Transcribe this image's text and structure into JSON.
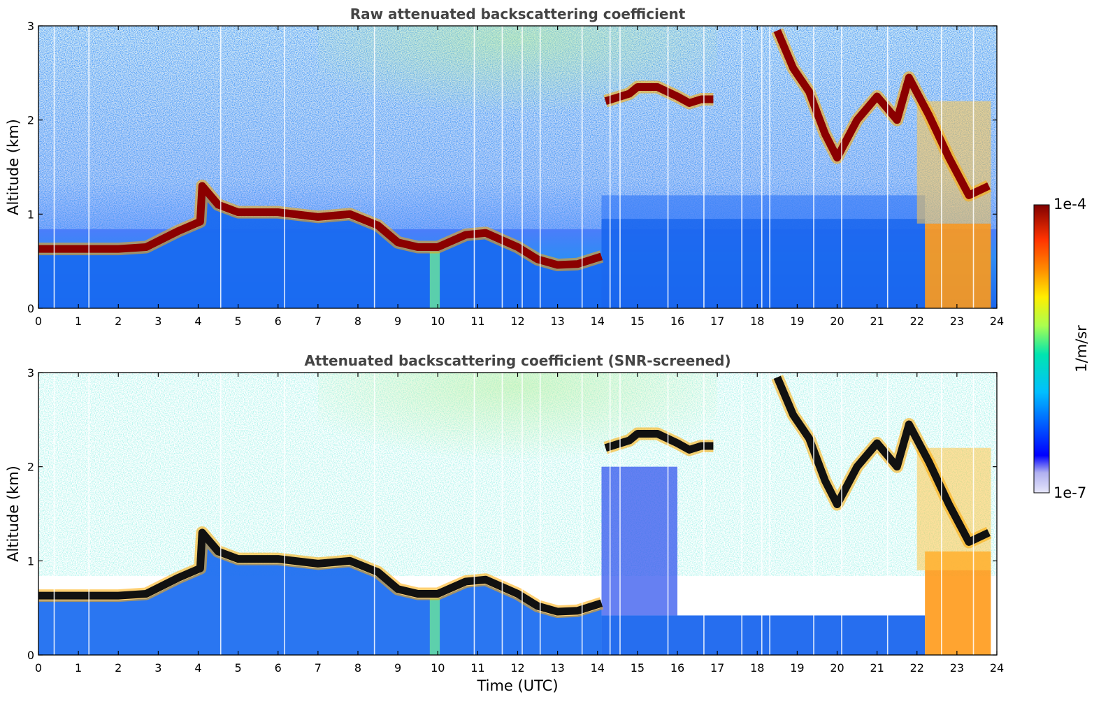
{
  "chart_data": [
    {
      "type": "heatmap",
      "title": "Raw attenuated backscattering coefficient",
      "xlabel": "",
      "ylabel": "Altitude (km)",
      "xlim": [
        0,
        24
      ],
      "ylim": [
        0,
        3
      ],
      "xticks": [
        "0",
        "1",
        "2",
        "3",
        "4",
        "5",
        "6",
        "7",
        "8",
        "9",
        "10",
        "11",
        "12",
        "13",
        "14",
        "15",
        "16",
        "17",
        "18",
        "19",
        "20",
        "21",
        "22",
        "23",
        "24"
      ],
      "yticks": [
        "0",
        "1",
        "2",
        "3"
      ],
      "screened": false,
      "cloud_layer": {
        "x": [
          0,
          1,
          2,
          2.7,
          3.5,
          4.05,
          4.1,
          4.5,
          5,
          6,
          7,
          7.8,
          8.5,
          9,
          9.5,
          10,
          10.7,
          11.2,
          12,
          12.5,
          13,
          13.5,
          14.1
        ],
        "y": [
          0.63,
          0.63,
          0.63,
          0.65,
          0.82,
          0.92,
          1.3,
          1.1,
          1.02,
          1.02,
          0.97,
          1.0,
          0.88,
          0.7,
          0.65,
          0.65,
          0.78,
          0.8,
          0.65,
          0.52,
          0.46,
          0.47,
          0.55
        ]
      },
      "upper_cloud": {
        "x": [
          14.2,
          14.8,
          15,
          15.5,
          16,
          16.3,
          16.6,
          16.9
        ],
        "y": [
          2.2,
          2.28,
          2.35,
          2.35,
          2.25,
          2.18,
          2.22,
          2.22
        ]
      },
      "high_cloud": {
        "x": [
          18.5,
          18.9,
          19.3,
          19.7,
          20,
          20.5,
          21,
          21.5,
          21.8,
          22.3,
          22.8,
          23.3,
          23.8
        ],
        "y": [
          2.95,
          2.55,
          2.3,
          1.85,
          1.6,
          2.0,
          2.25,
          2.0,
          2.45,
          2.05,
          1.6,
          1.2,
          1.3
        ]
      }
    },
    {
      "type": "heatmap",
      "title": "Attenuated backscattering coefficient (SNR-screened)",
      "xlabel": "Time (UTC)",
      "ylabel": "Altitude (km)",
      "xlim": [
        0,
        24
      ],
      "ylim": [
        0,
        3
      ],
      "xticks": [
        "0",
        "1",
        "2",
        "3",
        "4",
        "5",
        "6",
        "7",
        "8",
        "9",
        "10",
        "11",
        "12",
        "13",
        "14",
        "15",
        "16",
        "17",
        "18",
        "19",
        "20",
        "21",
        "22",
        "23",
        "24"
      ],
      "yticks": [
        "0",
        "1",
        "2",
        "3"
      ],
      "screened": true,
      "cloud_layer": {
        "x": [
          0,
          1,
          2,
          2.7,
          3.5,
          4.05,
          4.1,
          4.5,
          5,
          6,
          7,
          7.8,
          8.5,
          9,
          9.5,
          10,
          10.7,
          11.2,
          12,
          12.5,
          13,
          13.5,
          14.1
        ],
        "y": [
          0.63,
          0.63,
          0.63,
          0.65,
          0.82,
          0.92,
          1.3,
          1.1,
          1.02,
          1.02,
          0.97,
          1.0,
          0.88,
          0.7,
          0.65,
          0.65,
          0.78,
          0.8,
          0.65,
          0.52,
          0.46,
          0.47,
          0.55
        ]
      },
      "upper_cloud": {
        "x": [
          14.2,
          14.8,
          15,
          15.5,
          16,
          16.3,
          16.6,
          16.9
        ],
        "y": [
          2.2,
          2.28,
          2.35,
          2.35,
          2.25,
          2.18,
          2.22,
          2.22
        ]
      },
      "high_cloud": {
        "x": [
          18.5,
          18.9,
          19.3,
          19.7,
          20,
          20.5,
          21,
          21.5,
          21.8,
          22.3,
          22.8,
          23.3,
          23.8
        ],
        "y": [
          2.95,
          2.55,
          2.3,
          1.85,
          1.6,
          2.0,
          2.25,
          2.0,
          2.45,
          2.05,
          1.6,
          1.2,
          1.3
        ]
      }
    }
  ],
  "colorbar": {
    "label": "1/m/sr",
    "max_label": "1e-4",
    "min_label": "1e-7",
    "scale": "log",
    "colors": [
      "#e6e6fa",
      "#0000ff",
      "#00bfff",
      "#00e5b0",
      "#aaff50",
      "#ffee00",
      "#ff8800",
      "#ff3300",
      "#800000"
    ]
  }
}
